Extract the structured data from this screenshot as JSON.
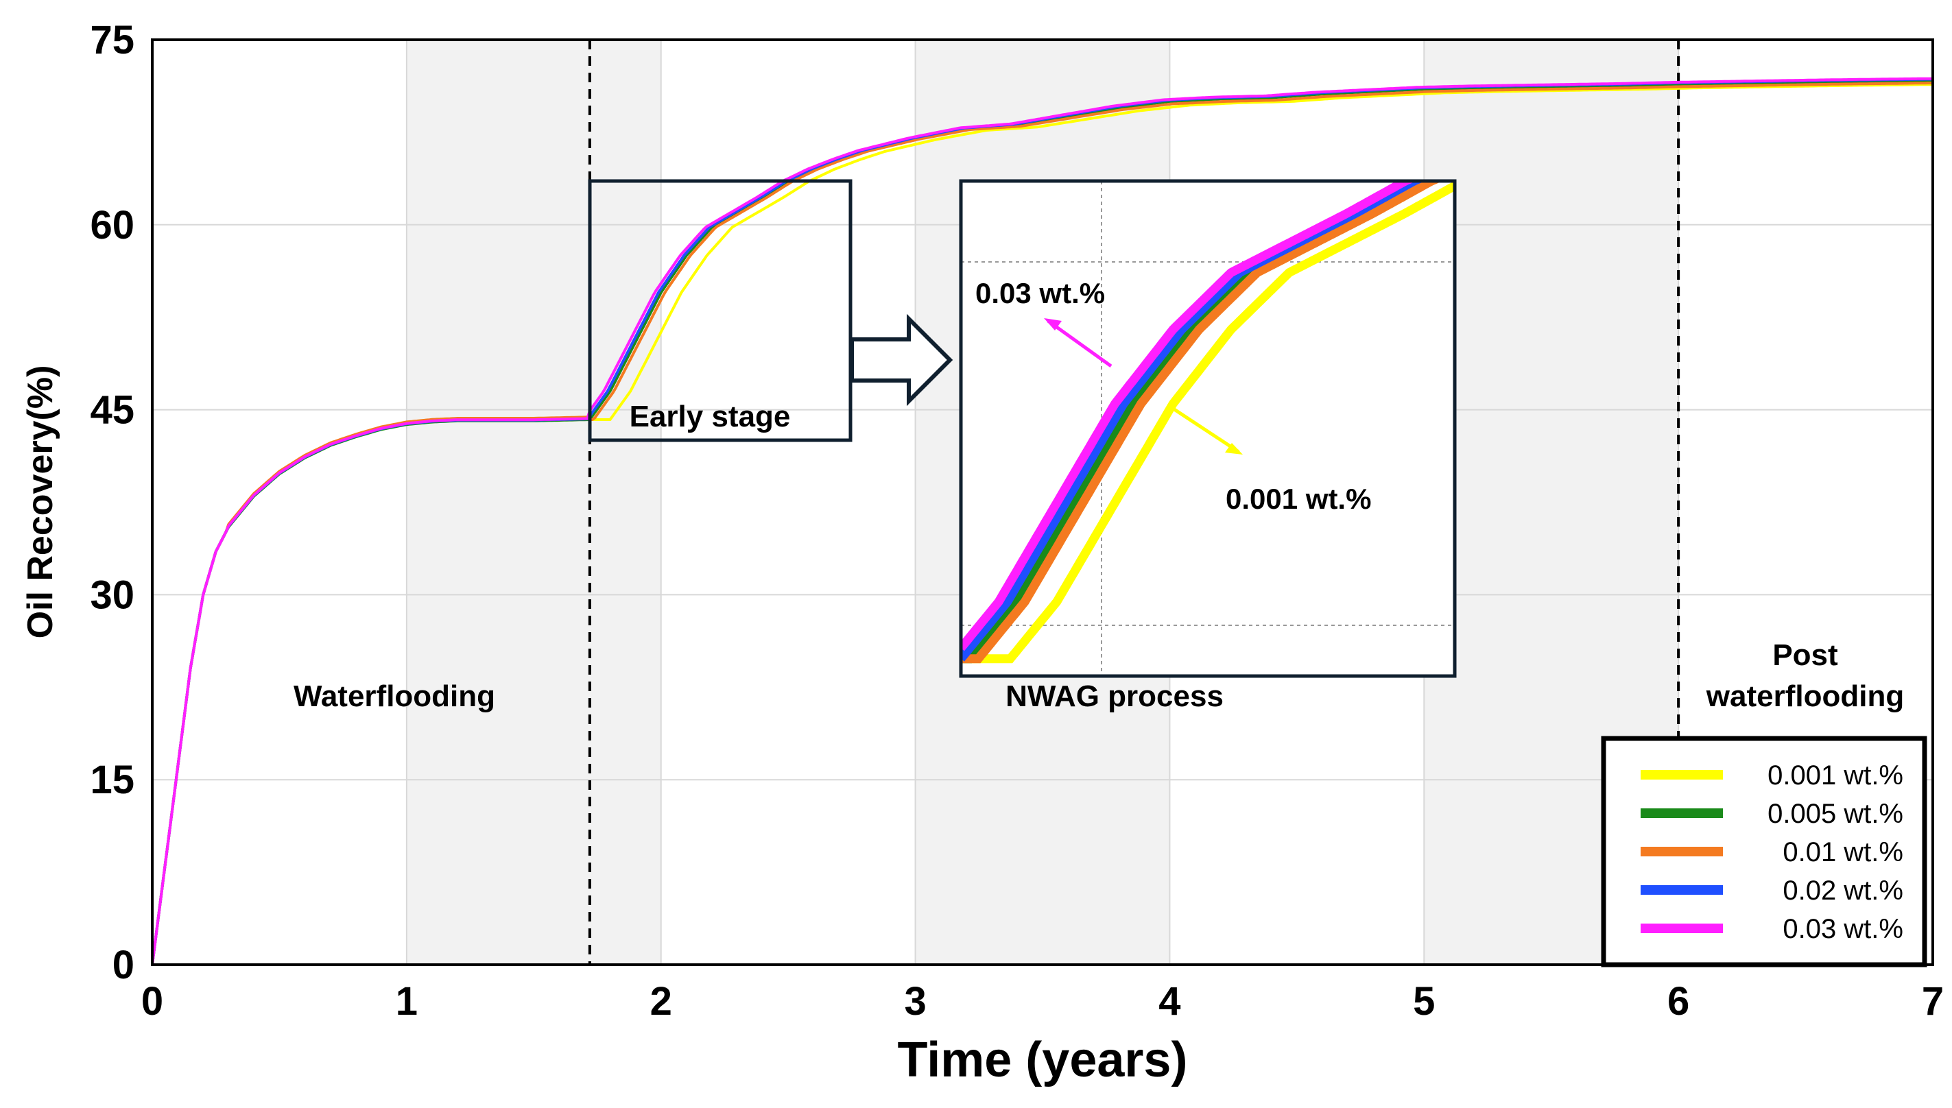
{
  "chart_data": {
    "type": "line",
    "xlabel": "Time (years)",
    "ylabel": "Oil Recovery(%)",
    "xlim": [
      0,
      7
    ],
    "ylim": [
      0,
      75
    ],
    "x_ticks": [
      "0",
      "1",
      "2",
      "3",
      "4",
      "5",
      "6",
      "7"
    ],
    "y_ticks": [
      "0",
      "15",
      "30",
      "45",
      "60",
      "75"
    ],
    "grid": true,
    "phase_boundaries": [
      1.72,
      6.0
    ],
    "annotations": {
      "waterflooding": "Waterflooding",
      "nwag": "NWAG process",
      "post_line1": "Post",
      "post_line2": "waterflooding",
      "early": "Early stage",
      "inset_top": "0.03 wt.%",
      "inset_bottom": "0.001 wt.%"
    },
    "series": [
      {
        "name": "0.001 wt.%",
        "color": "#ffff00",
        "offset": 0.25,
        "shift": -0.6,
        "delay": 0.08
      },
      {
        "name": "0.005 wt.%",
        "color": "#1a8a1a",
        "offset": 0.0,
        "shift": 0.0,
        "delay": 0.0
      },
      {
        "name": "0.01 wt.%",
        "color": "#f47a20",
        "offset": 0.35,
        "shift": -0.4,
        "delay": 0.015
      },
      {
        "name": "0.02 wt.%",
        "color": "#1f4fff",
        "offset": 0.1,
        "shift": 0.2,
        "delay": -0.01
      },
      {
        "name": "0.03 wt.%",
        "color": "#ff1fff",
        "offset": 0.15,
        "shift": 0.3,
        "delay": -0.025
      }
    ],
    "base_curve": {
      "x": [
        0,
        0.05,
        0.1,
        0.15,
        0.2,
        0.25,
        0.3,
        0.4,
        0.5,
        0.6,
        0.7,
        0.8,
        0.9,
        1.0,
        1.1,
        1.2,
        1.5,
        1.72,
        1.8,
        1.9,
        2.0,
        2.1,
        2.2,
        2.3,
        2.4,
        2.5,
        2.6,
        2.7,
        2.8,
        3.0,
        3.2,
        3.4,
        3.6,
        3.8,
        4.0,
        4.2,
        4.4,
        4.6,
        4.8,
        5.0,
        5.2,
        5.5,
        5.8,
        6.0,
        6.3,
        6.6,
        7.0
      ],
      "y": [
        0,
        8,
        16,
        24,
        30,
        33.5,
        35.5,
        38,
        39.8,
        41.1,
        42.1,
        42.8,
        43.4,
        43.8,
        44.0,
        44.1,
        44.1,
        44.2,
        46.5,
        50.5,
        54.5,
        57.5,
        59.8,
        61.0,
        62.2,
        63.5,
        64.5,
        65.3,
        66.0,
        67.0,
        67.8,
        68.1,
        68.8,
        69.5,
        70.0,
        70.2,
        70.3,
        70.6,
        70.8,
        71.0,
        71.1,
        71.2,
        71.3,
        71.4,
        71.5,
        71.6,
        71.7
      ]
    }
  },
  "legend": {
    "items": [
      "0.001 wt.%",
      "0.005 wt.%",
      "0.01 wt.%",
      "0.02 wt.%",
      "0.03 wt.%"
    ]
  }
}
